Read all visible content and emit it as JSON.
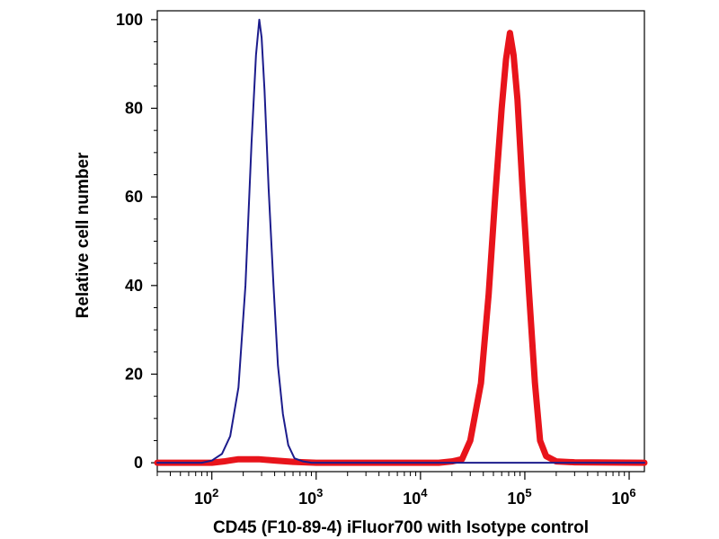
{
  "chart_data": {
    "type": "line",
    "title": "",
    "xlabel": "CD45 (F10-89-4) iFluor700 with Isotype control",
    "ylabel": "Relative cell number",
    "x_scale": "log",
    "xlim": [
      30,
      1400000
    ],
    "ylim": [
      -2,
      102
    ],
    "x_ticks": [
      {
        "base": "10",
        "exp": "2"
      },
      {
        "base": "10",
        "exp": "3"
      },
      {
        "base": "10",
        "exp": "4"
      },
      {
        "base": "10",
        "exp": "5"
      },
      {
        "base": "10",
        "exp": "6"
      }
    ],
    "y_ticks": [
      "0",
      "20",
      "40",
      "60",
      "80",
      "100"
    ],
    "grid": false,
    "legend": "none",
    "series": [
      {
        "color": "#e8141b",
        "x": [
          30,
          100,
          130,
          180,
          280,
          400,
          600,
          1000,
          5000,
          15000,
          20000,
          25000,
          30000,
          38000,
          45000,
          52000,
          60000,
          66000,
          72000,
          78000,
          85000,
          95000,
          110000,
          125000,
          140000,
          160000,
          200000,
          300000,
          1400000
        ],
        "y": [
          0,
          0,
          0.3,
          0.8,
          0.8,
          0.5,
          0.2,
          0,
          0,
          0,
          0.3,
          0.8,
          5,
          18,
          38,
          60,
          80,
          91,
          97,
          92,
          82,
          62,
          38,
          18,
          5,
          1.5,
          0.3,
          0.1,
          0
        ]
      },
      {
        "color": "#1c1c8c",
        "x": [
          30,
          80,
          100,
          125,
          150,
          180,
          210,
          240,
          265,
          285,
          300,
          320,
          350,
          390,
          430,
          480,
          540,
          620,
          750,
          900,
          1100,
          1300,
          1400000
        ],
        "y": [
          0,
          0,
          0.5,
          2,
          6,
          17,
          40,
          72,
          92,
          100,
          96,
          84,
          62,
          40,
          22,
          11,
          4,
          1,
          0.3,
          0,
          0,
          0,
          0
        ]
      }
    ]
  }
}
